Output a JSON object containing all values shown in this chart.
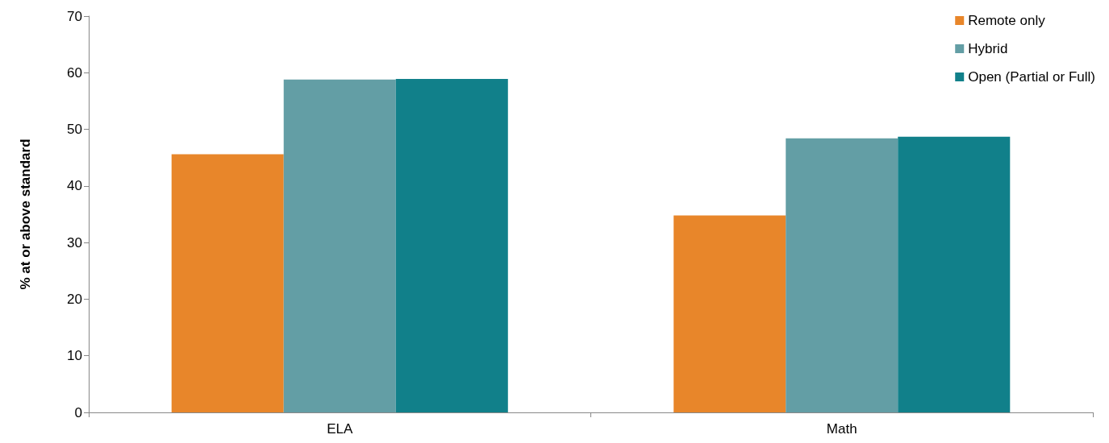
{
  "chart_data": {
    "type": "bar",
    "ylabel": "% at or above standard",
    "categories": [
      "ELA",
      "Math"
    ],
    "series": [
      {
        "name": "Remote only",
        "color": "#e8862a",
        "values": [
          45.6,
          34.8
        ]
      },
      {
        "name": "Hybrid",
        "color": "#639ea5",
        "values": [
          58.8,
          48.4
        ]
      },
      {
        "name": "Open (Partial or Full)",
        "color": "#11808a",
        "values": [
          58.9,
          48.7
        ]
      }
    ],
    "ylim": [
      0,
      70
    ],
    "yticks": [
      0,
      10,
      20,
      30,
      40,
      50,
      60,
      70
    ],
    "grid": false,
    "legend": "top right"
  }
}
